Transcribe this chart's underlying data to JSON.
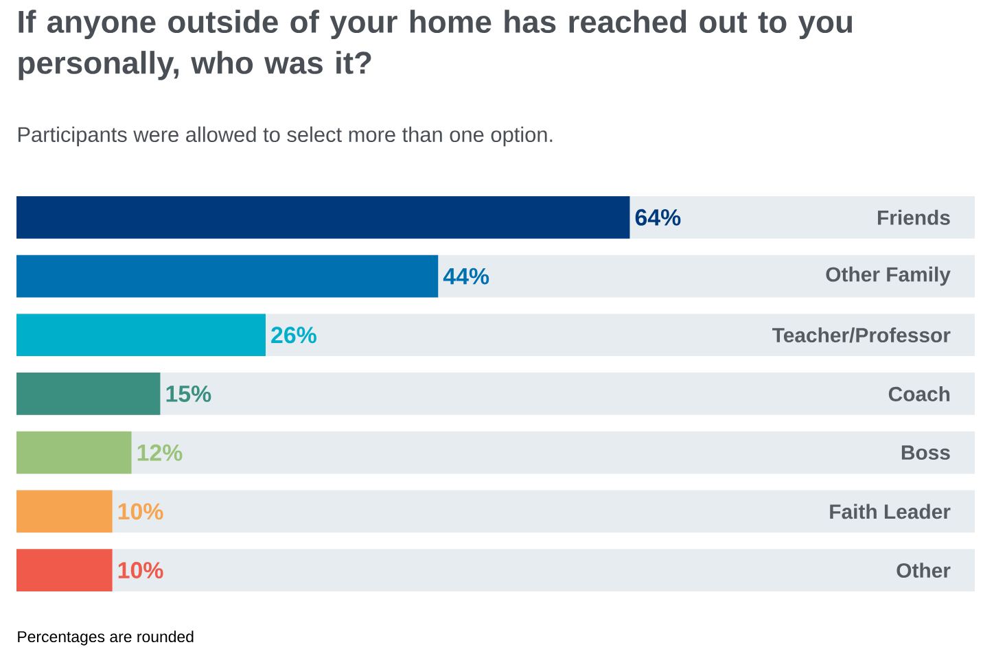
{
  "chart_data": {
    "type": "bar",
    "orientation": "horizontal",
    "title": "If anyone outside of your home has reached out to you personally, who was it?",
    "subtitle": "Participants were allowed to select more than one option.",
    "categories": [
      "Friends",
      "Other Family",
      "Teacher/Professor",
      "Coach",
      "Boss",
      "Faith Leader",
      "Other"
    ],
    "values": [
      64,
      44,
      26,
      15,
      12,
      10,
      10
    ],
    "value_labels": [
      "64%",
      "44%",
      "26%",
      "15%",
      "12%",
      "10%",
      "10%"
    ],
    "colors": [
      "#003a7d",
      "#0070b0",
      "#00afc9",
      "#3a8f80",
      "#9bc27a",
      "#f7a451",
      "#ef5a4a"
    ],
    "xlim": [
      0,
      100
    ],
    "annotations": [
      "Percentages are rounded"
    ]
  }
}
